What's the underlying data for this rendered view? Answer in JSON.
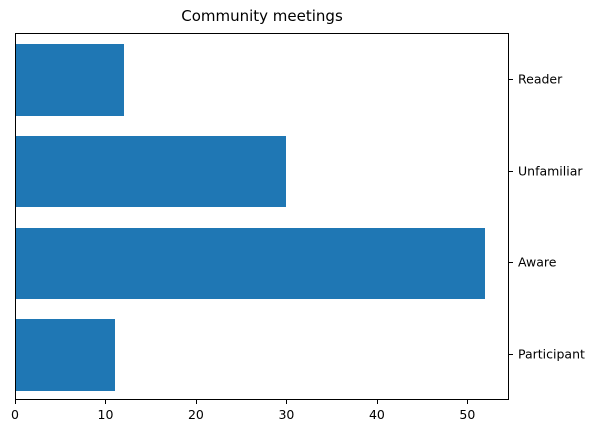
{
  "chart_data": {
    "type": "bar",
    "orientation": "horizontal",
    "title": "Community meetings",
    "categories": [
      "Reader",
      "Unfamiliar",
      "Aware",
      "Participant"
    ],
    "values": [
      12,
      30,
      52,
      11
    ],
    "xlabel": "",
    "ylabel": "",
    "xlim": [
      0,
      54.6
    ],
    "x_ticks": [
      0,
      10,
      20,
      30,
      40,
      50
    ],
    "bar_color": "#1f77b4",
    "axis_color": "#000000",
    "text_color": "#000000",
    "label_side": "right",
    "legend": null,
    "grid": false
  }
}
